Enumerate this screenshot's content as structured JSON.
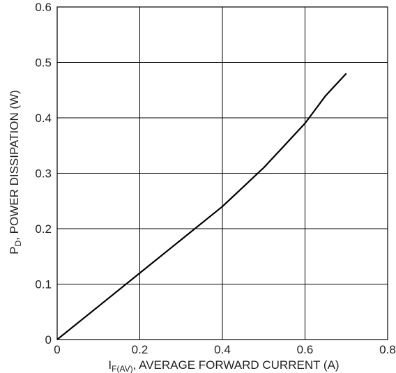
{
  "chart_data": {
    "type": "line",
    "title": "",
    "xlabel": {
      "main": "I",
      "sub": "F(AV)",
      "rest": ", AVERAGE FORWARD CURRENT (A)"
    },
    "ylabel": {
      "main": "P",
      "sub": "D",
      "rest": ", POWER DISSIPATION (W)"
    },
    "xlim": [
      0,
      0.8
    ],
    "ylim": [
      0,
      0.6
    ],
    "x_ticks": [
      "0",
      "0.2",
      "0.4",
      "0.6",
      "0.8"
    ],
    "y_ticks": [
      "0",
      "0.1",
      "0.2",
      "0.3",
      "0.4",
      "0.5",
      "0.6"
    ],
    "grid": true,
    "series": [
      {
        "x": [
          0,
          0.1,
          0.2,
          0.3,
          0.4,
          0.5,
          0.55,
          0.6,
          0.62,
          0.65,
          0.7
        ],
        "y": [
          0,
          0.06,
          0.12,
          0.18,
          0.24,
          0.31,
          0.35,
          0.39,
          0.41,
          0.44,
          0.48
        ]
      }
    ],
    "line_color": "#000000",
    "grid_color": "#000000"
  }
}
